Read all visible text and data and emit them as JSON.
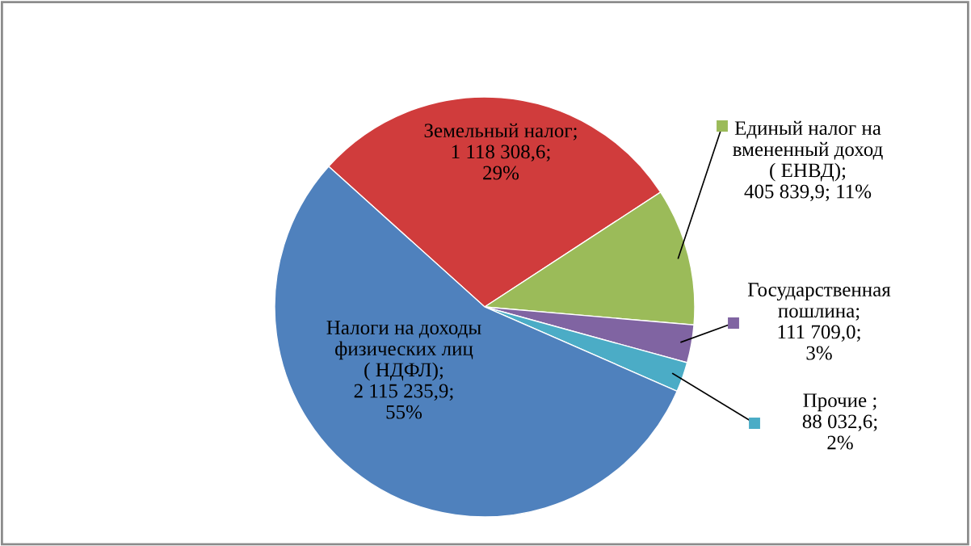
{
  "chart_data": {
    "type": "pie",
    "categories": [
      "Земельный налог",
      "Единый налог на вмененный доход ( ЕНВД)",
      "Государственная пошлина",
      "Прочие",
      "Налоги на доходы физических лиц ( НДФЛ)"
    ],
    "values": [
      1118308.6,
      405839.9,
      111709.0,
      88032.6,
      2115235.9
    ],
    "value_labels": [
      ";\n1 118 308,6;\n29%",
      ";\n405 839,9; 11%",
      ";\n111 709,0;\n3%",
      " ;\n88 032,6;\n2%",
      ";\n2 115 235,9;\n55%"
    ],
    "colors": [
      "#d03c3c",
      "#9bbb59",
      "#8064a2",
      "#4bacc6",
      "#4f81bd"
    ],
    "legend": "right"
  }
}
